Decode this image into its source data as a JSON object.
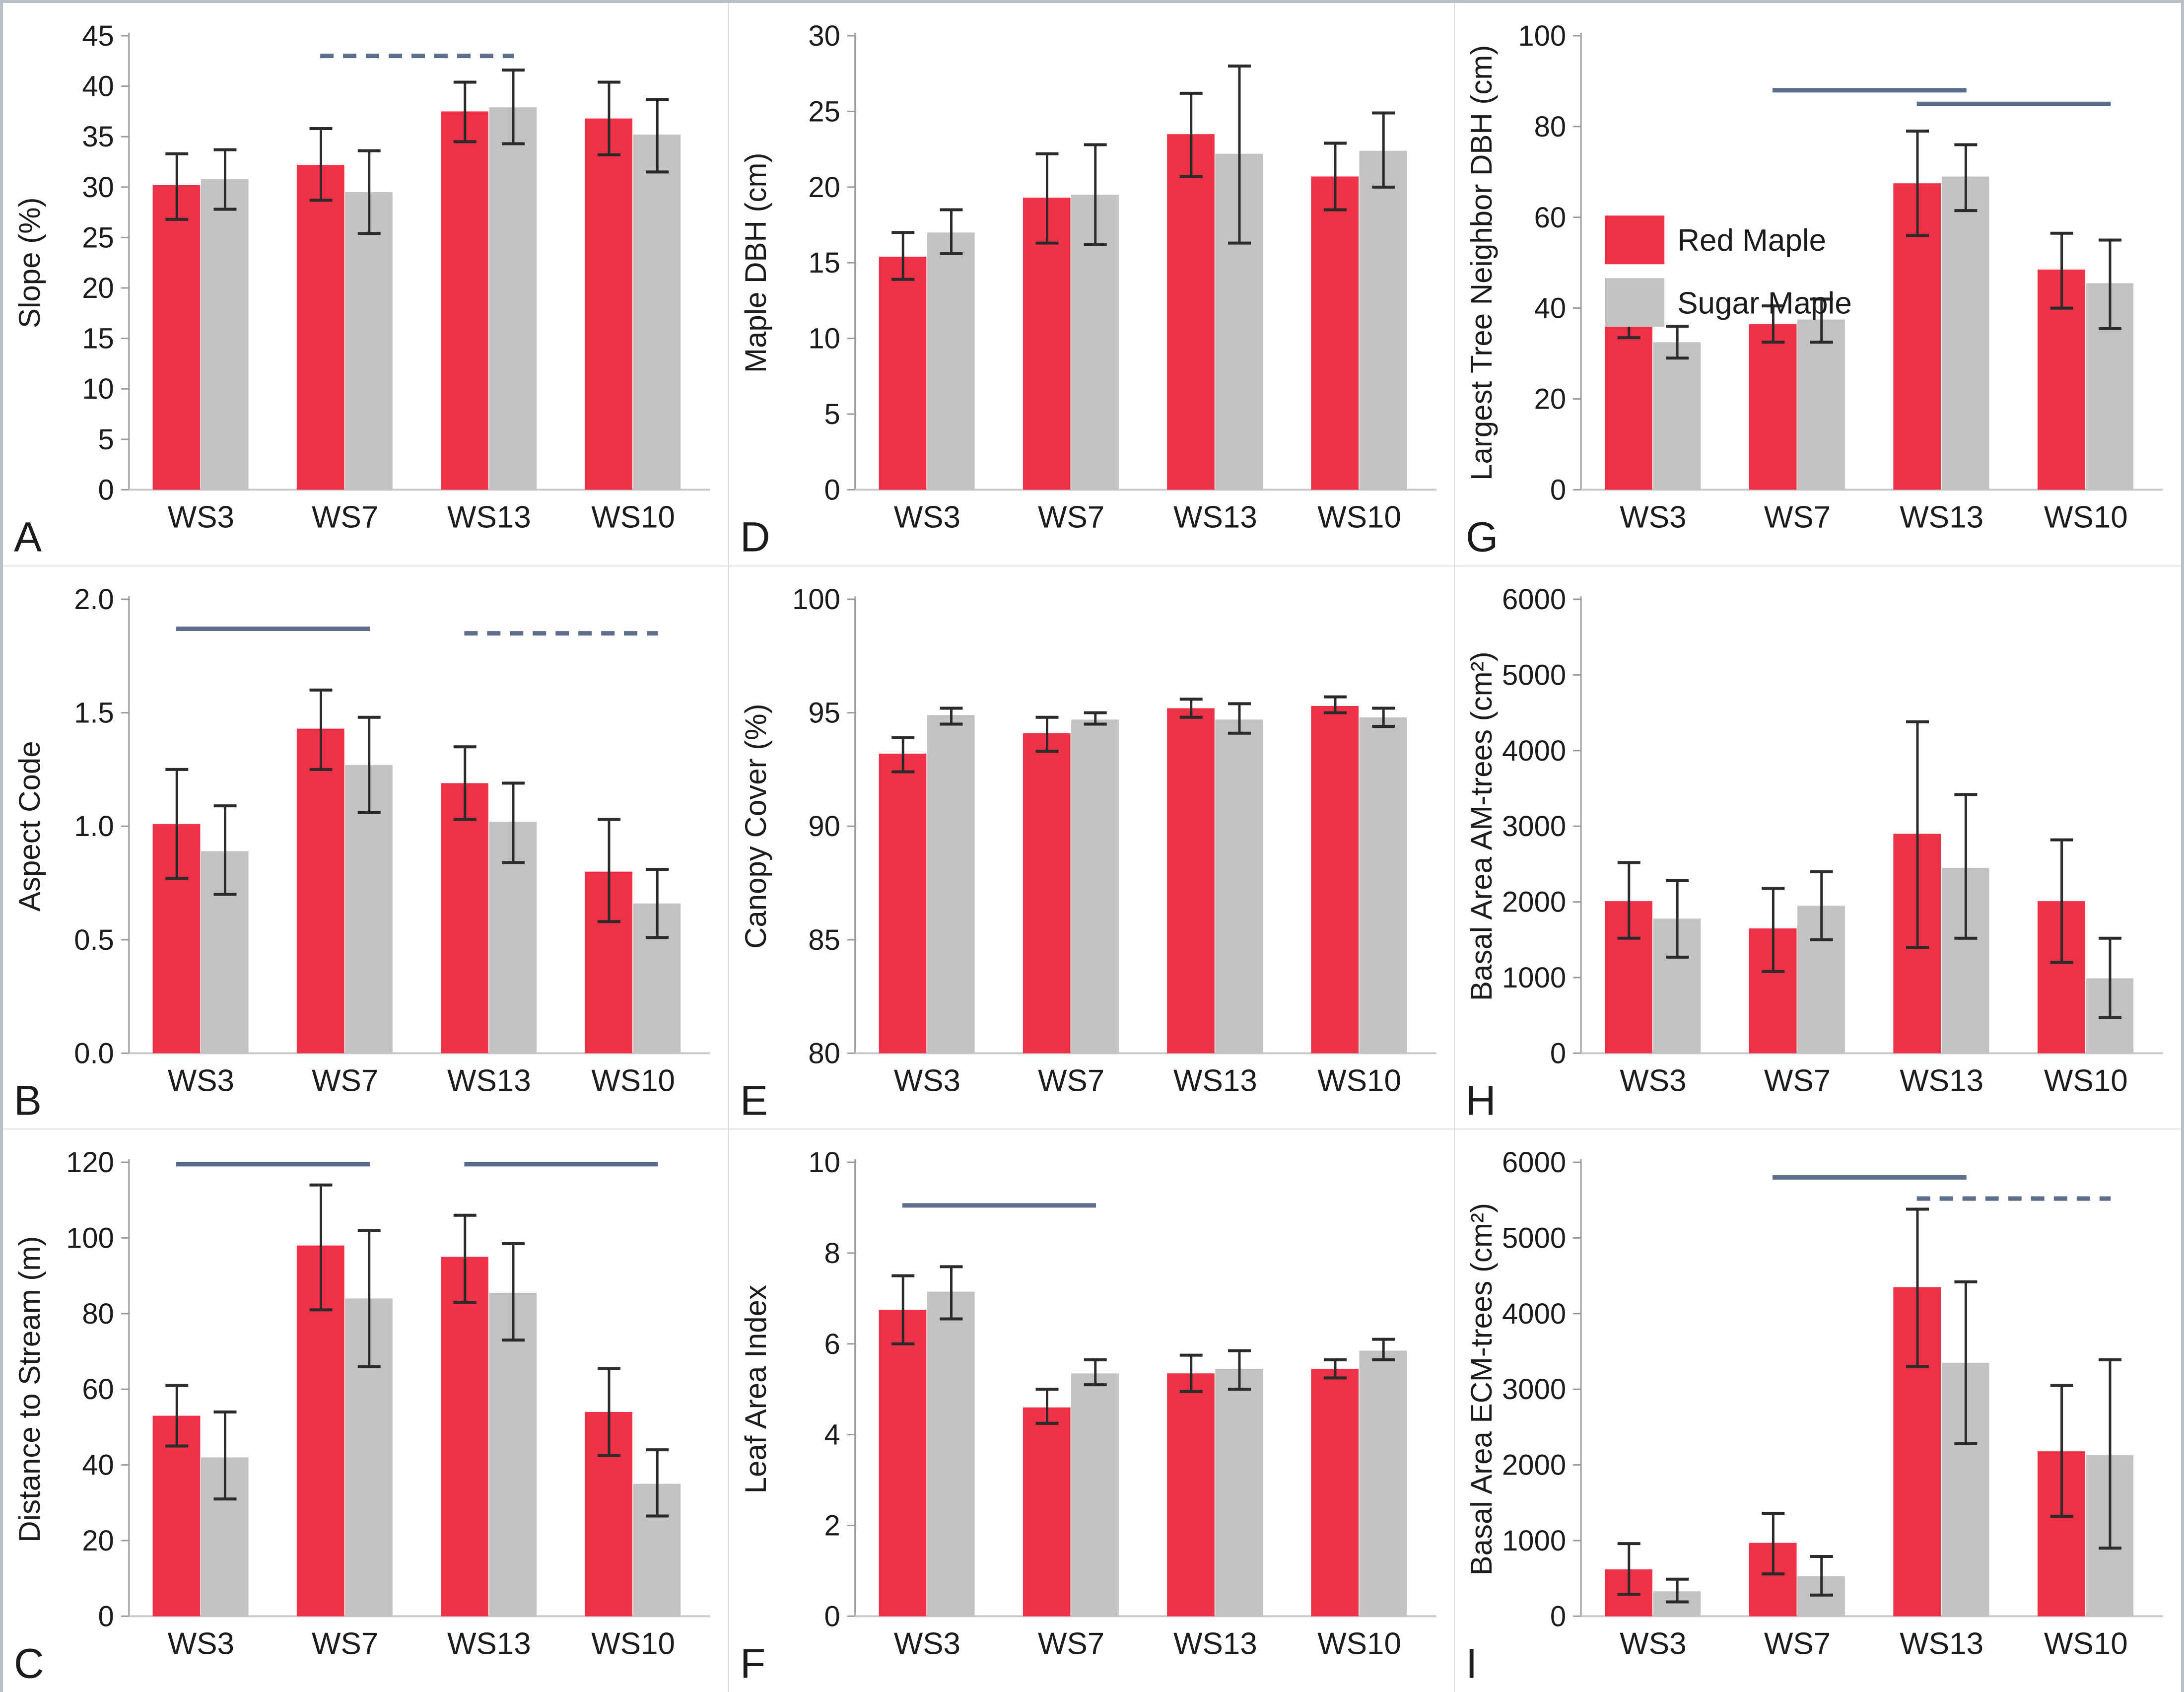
{
  "figure": {
    "colors": {
      "red_maple": "#ee3146",
      "sugar_maple": "#c2c2c2",
      "error_bar": "#2b2b2b",
      "sig_line": "#5d6e8c",
      "axis": "#9b9b9b",
      "baseline": "#c9c9c9",
      "text": "#1c1c1c"
    },
    "legend": {
      "panel": "G",
      "items": [
        {
          "label": "Red Maple",
          "color": "#ee3146"
        },
        {
          "label": "Sugar Maple",
          "color": "#c2c2c2"
        }
      ]
    }
  },
  "chart_data": [
    {
      "panel": "A",
      "type": "bar",
      "ylabel": "Slope (%)",
      "ylim": [
        0,
        45
      ],
      "yticks": [
        0,
        5,
        10,
        15,
        20,
        25,
        30,
        35,
        40,
        45
      ],
      "ytick_labels": [
        "0",
        "5",
        "10",
        "15",
        "20",
        "25",
        "30",
        "35",
        "40",
        "45"
      ],
      "categories": [
        "WS3",
        "WS7",
        "WS13",
        "WS10"
      ],
      "series": [
        {
          "name": "Red Maple",
          "values": [
            30.2,
            32.2,
            37.5,
            36.8
          ],
          "err_lo": [
            26.8,
            28.7,
            34.5,
            33.2
          ],
          "err_hi": [
            33.3,
            35.8,
            40.4,
            40.4
          ]
        },
        {
          "name": "Sugar Maple",
          "values": [
            30.8,
            29.5,
            37.9,
            35.2
          ],
          "err_lo": [
            27.8,
            25.4,
            34.3,
            31.5
          ],
          "err_hi": [
            33.7,
            33.6,
            41.6,
            38.7
          ]
        }
      ],
      "sig_lines": [
        {
          "from": 1,
          "to": 2,
          "y": 43,
          "style": "dashed"
        }
      ]
    },
    {
      "panel": "D",
      "type": "bar",
      "ylabel": "Maple DBH (cm)",
      "ylim": [
        0,
        30
      ],
      "yticks": [
        0,
        5,
        10,
        15,
        20,
        25,
        30
      ],
      "ytick_labels": [
        "0",
        "5",
        "10",
        "15",
        "20",
        "25",
        "30"
      ],
      "categories": [
        "WS3",
        "WS7",
        "WS13",
        "WS10"
      ],
      "series": [
        {
          "name": "Red Maple",
          "values": [
            15.4,
            19.3,
            23.5,
            20.7
          ],
          "err_lo": [
            13.9,
            16.3,
            20.7,
            18.5
          ],
          "err_hi": [
            17.0,
            22.2,
            26.2,
            22.9
          ]
        },
        {
          "name": "Sugar Maple",
          "values": [
            17.0,
            19.5,
            22.2,
            22.4
          ],
          "err_lo": [
            15.6,
            16.2,
            16.3,
            20.0
          ],
          "err_hi": [
            18.5,
            22.8,
            28.0,
            24.9
          ]
        }
      ],
      "sig_lines": []
    },
    {
      "panel": "G",
      "type": "bar",
      "ylabel": "Largest Tree Neighbor DBH (cm)",
      "ylim": [
        0,
        100
      ],
      "yticks": [
        0,
        20,
        40,
        60,
        80,
        100
      ],
      "ytick_labels": [
        "0",
        "20",
        "40",
        "60",
        "80",
        "100"
      ],
      "categories": [
        "WS3",
        "WS7",
        "WS13",
        "WS10"
      ],
      "series": [
        {
          "name": "Red Maple",
          "values": [
            37.0,
            36.5,
            67.5,
            48.5
          ],
          "err_lo": [
            33.5,
            32.5,
            56.0,
            40.0
          ],
          "err_hi": [
            40.0,
            40.5,
            79.0,
            56.5
          ]
        },
        {
          "name": "Sugar Maple",
          "values": [
            32.5,
            37.5,
            69.0,
            45.5
          ],
          "err_lo": [
            29.0,
            32.5,
            61.5,
            35.5
          ],
          "err_hi": [
            36.0,
            42.0,
            76.0,
            55.0
          ]
        }
      ],
      "sig_lines": [
        {
          "from": 1,
          "to": 2,
          "y": 88,
          "style": "solid"
        },
        {
          "from": 2,
          "to": 3,
          "y": 85,
          "style": "solid"
        }
      ],
      "show_legend": true
    },
    {
      "panel": "B",
      "type": "bar",
      "ylabel": "Aspect Code",
      "ylim": [
        0,
        2.0
      ],
      "yticks": [
        0,
        0.5,
        1.0,
        1.5,
        2.0
      ],
      "ytick_labels": [
        "0.0",
        "0.5",
        "1.0",
        "1.5",
        "2.0"
      ],
      "categories": [
        "WS3",
        "WS7",
        "WS13",
        "WS10"
      ],
      "series": [
        {
          "name": "Red Maple",
          "values": [
            1.01,
            1.43,
            1.19,
            0.8
          ],
          "err_lo": [
            0.77,
            1.25,
            1.03,
            0.58
          ],
          "err_hi": [
            1.25,
            1.6,
            1.35,
            1.03
          ]
        },
        {
          "name": "Sugar Maple",
          "values": [
            0.89,
            1.27,
            1.02,
            0.66
          ],
          "err_lo": [
            0.7,
            1.06,
            0.84,
            0.51
          ],
          "err_hi": [
            1.09,
            1.48,
            1.19,
            0.81
          ]
        }
      ],
      "sig_lines": [
        {
          "from": 0,
          "to": 1,
          "y": 1.87,
          "style": "solid"
        },
        {
          "from": 2,
          "to": 3,
          "y": 1.85,
          "style": "dashed"
        }
      ]
    },
    {
      "panel": "E",
      "type": "bar",
      "ylabel": "Canopy Cover (%)",
      "ylim": [
        80,
        100
      ],
      "yticks": [
        80,
        85,
        90,
        95,
        100
      ],
      "ytick_labels": [
        "80",
        "85",
        "90",
        "95",
        "100"
      ],
      "categories": [
        "WS3",
        "WS7",
        "WS13",
        "WS10"
      ],
      "series": [
        {
          "name": "Red Maple",
          "values": [
            93.2,
            94.1,
            95.2,
            95.3
          ],
          "err_lo": [
            92.4,
            93.3,
            94.8,
            95.0
          ],
          "err_hi": [
            93.9,
            94.8,
            95.6,
            95.7
          ]
        },
        {
          "name": "Sugar Maple",
          "values": [
            94.9,
            94.7,
            94.7,
            94.8
          ],
          "err_lo": [
            94.5,
            94.5,
            94.1,
            94.4
          ],
          "err_hi": [
            95.2,
            95.0,
            95.4,
            95.2
          ]
        }
      ],
      "sig_lines": []
    },
    {
      "panel": "H",
      "type": "bar",
      "ylabel": "Basal Area AM-trees (cm²)",
      "ylim": [
        0,
        6000
      ],
      "yticks": [
        0,
        1000,
        2000,
        3000,
        4000,
        5000,
        6000
      ],
      "ytick_labels": [
        "0",
        "1000",
        "2000",
        "3000",
        "4000",
        "5000",
        "6000"
      ],
      "categories": [
        "WS3",
        "WS7",
        "WS13",
        "WS10"
      ],
      "series": [
        {
          "name": "Red Maple",
          "values": [
            2010,
            1650,
            2900,
            2010
          ],
          "err_lo": [
            1520,
            1080,
            1400,
            1200
          ],
          "err_hi": [
            2520,
            2180,
            4380,
            2820
          ]
        },
        {
          "name": "Sugar Maple",
          "values": [
            1780,
            1950,
            2450,
            990
          ],
          "err_lo": [
            1270,
            1500,
            1520,
            470
          ],
          "err_hi": [
            2280,
            2400,
            3420,
            1520
          ]
        }
      ],
      "sig_lines": []
    },
    {
      "panel": "C",
      "type": "bar",
      "ylabel": "Distance to Stream (m)",
      "ylim": [
        0,
        120
      ],
      "yticks": [
        0,
        20,
        40,
        60,
        80,
        100,
        120
      ],
      "ytick_labels": [
        "0",
        "20",
        "40",
        "60",
        "80",
        "100",
        "120"
      ],
      "categories": [
        "WS3",
        "WS7",
        "WS13",
        "WS10"
      ],
      "series": [
        {
          "name": "Red Maple",
          "values": [
            53,
            98,
            95,
            54
          ],
          "err_lo": [
            45,
            81,
            83,
            42.5
          ],
          "err_hi": [
            61,
            114,
            106,
            65.5
          ]
        },
        {
          "name": "Sugar Maple",
          "values": [
            42,
            84,
            85.5,
            35
          ],
          "err_lo": [
            31,
            66,
            73,
            26.5
          ],
          "err_hi": [
            54,
            102,
            98.5,
            44
          ]
        }
      ],
      "sig_lines": [
        {
          "from": 0,
          "to": 1,
          "y": 119.5,
          "style": "solid"
        },
        {
          "from": 2,
          "to": 3,
          "y": 119.5,
          "style": "solid"
        }
      ]
    },
    {
      "panel": "F",
      "type": "bar",
      "ylabel": "Leaf Area Index",
      "ylim": [
        0,
        10
      ],
      "yticks": [
        0,
        2,
        4,
        6,
        8,
        10
      ],
      "ytick_labels": [
        "0",
        "2",
        "4",
        "6",
        "8",
        "10"
      ],
      "categories": [
        "WS3",
        "WS7",
        "WS13",
        "WS10"
      ],
      "series": [
        {
          "name": "Red Maple",
          "values": [
            6.75,
            4.6,
            5.35,
            5.45
          ],
          "err_lo": [
            6.0,
            4.25,
            4.95,
            5.25
          ],
          "err_hi": [
            7.5,
            5.0,
            5.75,
            5.65
          ]
        },
        {
          "name": "Sugar Maple",
          "values": [
            7.15,
            5.35,
            5.45,
            5.85
          ],
          "err_lo": [
            6.55,
            5.1,
            5.0,
            5.65
          ],
          "err_hi": [
            7.7,
            5.65,
            5.85,
            6.1
          ]
        }
      ],
      "sig_lines": [
        {
          "from": 0,
          "to": 1,
          "y": 9.05,
          "style": "solid"
        }
      ]
    },
    {
      "panel": "I",
      "type": "bar",
      "ylabel": "Basal Area ECM-trees (cm²)",
      "ylim": [
        0,
        6000
      ],
      "yticks": [
        0,
        1000,
        2000,
        3000,
        4000,
        5000,
        6000
      ],
      "ytick_labels": [
        "0",
        "1000",
        "2000",
        "3000",
        "4000",
        "5000",
        "6000"
      ],
      "categories": [
        "WS3",
        "WS7",
        "WS13",
        "WS10"
      ],
      "series": [
        {
          "name": "Red Maple",
          "values": [
            620,
            970,
            4350,
            2180
          ],
          "err_lo": [
            290,
            560,
            3300,
            1320
          ],
          "err_hi": [
            960,
            1360,
            5380,
            3050
          ]
        },
        {
          "name": "Sugar Maple",
          "values": [
            330,
            530,
            3350,
            2130
          ],
          "err_lo": [
            190,
            280,
            2280,
            900
          ],
          "err_hi": [
            490,
            790,
            4420,
            3390
          ]
        }
      ],
      "sig_lines": [
        {
          "from": 1,
          "to": 2,
          "y": 5800,
          "style": "solid"
        },
        {
          "from": 2,
          "to": 3,
          "y": 5520,
          "style": "dashed"
        }
      ]
    }
  ]
}
